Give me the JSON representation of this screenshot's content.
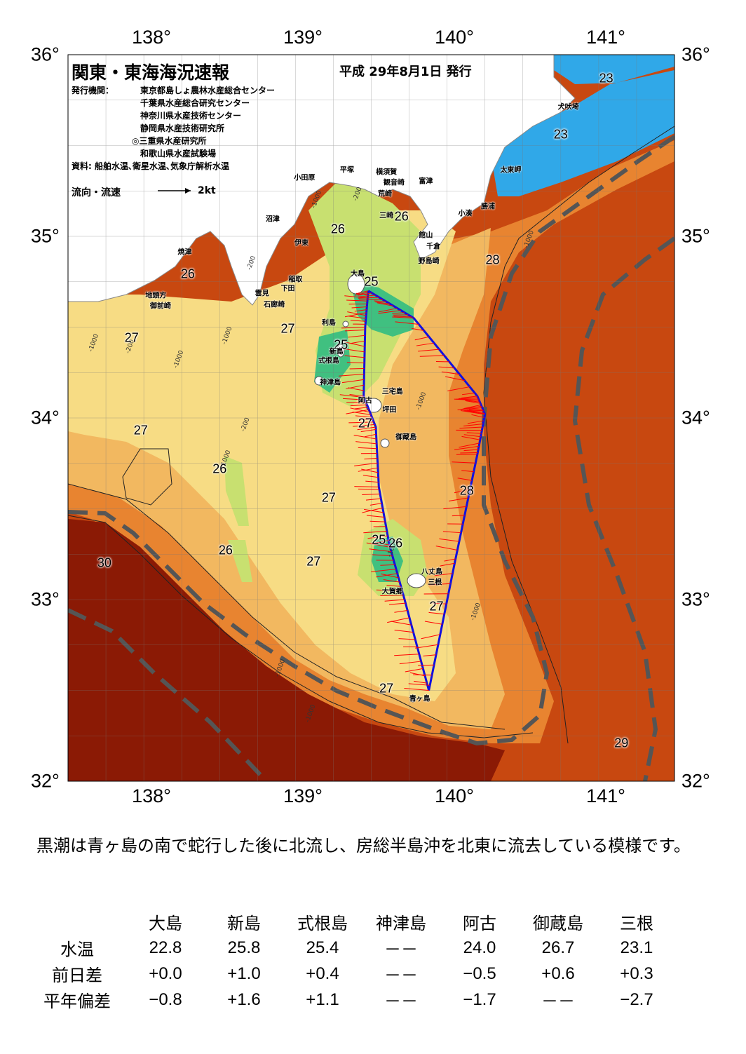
{
  "map": {
    "title": "関東・東海海況速報",
    "date": "平成 29年8月1日 発行",
    "issuer_label": "発行機関：",
    "organizations": [
      "東京都島しょ農林水産総合センター",
      "千葉県水産総合研究センター",
      "神奈川県水産技術センター",
      "静岡県水産技術研究所",
      "◎三重県水産研究所",
      "和歌山県水産試験場"
    ],
    "source": "資料: 船舶水温､衛星水温､気象庁解析水温",
    "legend_label": "流向・流速",
    "legend_unit": "2kt",
    "lon_labels": [
      "138°",
      "139°",
      "140°",
      "141°"
    ],
    "lat_labels": [
      "36°",
      "35°",
      "34°",
      "33°",
      "32°"
    ],
    "lon_range": [
      137.5,
      141.5
    ],
    "lat_range": [
      32,
      36
    ],
    "colors": {
      "kuroshio_axis": "#555555",
      "ship_track": "#1010e0",
      "current_vectors": "#ff0000",
      "temp_30": "#8b1a05",
      "temp_29": "#c84810",
      "temp_28": "#e88430",
      "temp_27": "#f2b860",
      "temp_26_27": "#f7dc84",
      "temp_26": "#c8e070",
      "temp_25": "#40c080",
      "temp_23": "#30a8e8",
      "land": "#ffffff"
    },
    "temperature_labels": [
      {
        "value": "23",
        "lon": 141.05,
        "lat": 35.87
      },
      {
        "value": "23",
        "lon": 140.75,
        "lat": 35.56
      },
      {
        "value": "26",
        "lon": 139.7,
        "lat": 35.11
      },
      {
        "value": "26",
        "lon": 139.28,
        "lat": 35.04
      },
      {
        "value": "28",
        "lon": 140.3,
        "lat": 34.87
      },
      {
        "value": "26",
        "lon": 138.29,
        "lat": 34.79
      },
      {
        "value": "25",
        "lon": 139.5,
        "lat": 34.75
      },
      {
        "value": "27",
        "lon": 138.95,
        "lat": 34.49
      },
      {
        "value": "27",
        "lon": 137.92,
        "lat": 34.44
      },
      {
        "value": "25",
        "lon": 139.3,
        "lat": 34.4
      },
      {
        "value": "27",
        "lon": 139.46,
        "lat": 33.97
      },
      {
        "value": "27",
        "lon": 137.98,
        "lat": 33.93
      },
      {
        "value": "26",
        "lon": 138.5,
        "lat": 33.72
      },
      {
        "value": "28",
        "lon": 140.13,
        "lat": 33.6
      },
      {
        "value": "27",
        "lon": 139.22,
        "lat": 33.56
      },
      {
        "value": "25",
        "lon": 139.55,
        "lat": 33.33
      },
      {
        "value": "26",
        "lon": 139.66,
        "lat": 33.31
      },
      {
        "value": "26",
        "lon": 138.54,
        "lat": 33.27
      },
      {
        "value": "30",
        "lon": 137.74,
        "lat": 33.2
      },
      {
        "value": "27",
        "lon": 139.12,
        "lat": 33.21
      },
      {
        "value": "27",
        "lon": 139.93,
        "lat": 32.96
      },
      {
        "value": "27",
        "lon": 139.6,
        "lat": 32.51
      },
      {
        "value": "29",
        "lon": 141.15,
        "lat": 32.21
      }
    ],
    "places": [
      {
        "name": "犬吠埼",
        "lon": 140.8,
        "lat": 35.72
      },
      {
        "name": "太東岬",
        "lon": 140.42,
        "lat": 35.37
      },
      {
        "name": "勝浦",
        "lon": 140.27,
        "lat": 35.17
      },
      {
        "name": "小湊",
        "lon": 140.12,
        "lat": 35.13
      },
      {
        "name": "富津",
        "lon": 139.86,
        "lat": 35.31
      },
      {
        "name": "横須賀",
        "lon": 139.6,
        "lat": 35.36
      },
      {
        "name": "観音崎",
        "lon": 139.65,
        "lat": 35.3
      },
      {
        "name": "荒崎",
        "lon": 139.59,
        "lat": 35.24
      },
      {
        "name": "三崎",
        "lon": 139.6,
        "lat": 35.12
      },
      {
        "name": "平塚",
        "lon": 139.34,
        "lat": 35.37
      },
      {
        "name": "小田原",
        "lon": 139.06,
        "lat": 35.33
      },
      {
        "name": "館山",
        "lon": 139.86,
        "lat": 35.01
      },
      {
        "name": "千倉",
        "lon": 139.91,
        "lat": 34.95
      },
      {
        "name": "野島崎",
        "lon": 139.88,
        "lat": 34.87
      },
      {
        "name": "沼津",
        "lon": 138.85,
        "lat": 35.1
      },
      {
        "name": "伊東",
        "lon": 139.04,
        "lat": 34.97
      },
      {
        "name": "焼津",
        "lon": 138.27,
        "lat": 34.92
      },
      {
        "name": "稲取",
        "lon": 139.0,
        "lat": 34.77
      },
      {
        "name": "下田",
        "lon": 138.95,
        "lat": 34.72
      },
      {
        "name": "雲見",
        "lon": 138.78,
        "lat": 34.69
      },
      {
        "name": "石廊崎",
        "lon": 138.86,
        "lat": 34.63
      },
      {
        "name": "地頭方",
        "lon": 138.08,
        "lat": 34.68
      },
      {
        "name": "御前崎",
        "lon": 138.11,
        "lat": 34.62
      },
      {
        "name": "大島",
        "lon": 139.41,
        "lat": 34.8
      },
      {
        "name": "利島",
        "lon": 139.22,
        "lat": 34.53
      },
      {
        "name": "新島",
        "lon": 139.27,
        "lat": 34.37
      },
      {
        "name": "式根島",
        "lon": 139.22,
        "lat": 34.32
      },
      {
        "name": "神津島",
        "lon": 139.23,
        "lat": 34.2
      },
      {
        "name": "阿古",
        "lon": 139.46,
        "lat": 34.1
      },
      {
        "name": "三宅島",
        "lon": 139.64,
        "lat": 34.15
      },
      {
        "name": "坪田",
        "lon": 139.62,
        "lat": 34.05
      },
      {
        "name": "御蔵島",
        "lon": 139.73,
        "lat": 33.9
      },
      {
        "name": "八丈島",
        "lon": 139.9,
        "lat": 33.16
      },
      {
        "name": "三根",
        "lon": 139.92,
        "lat": 33.1
      },
      {
        "name": "大賀郷",
        "lon": 139.64,
        "lat": 33.05
      },
      {
        "name": "青ヶ島",
        "lon": 139.82,
        "lat": 32.46
      }
    ],
    "contour_labels": [
      {
        "value": "-200",
        "lon": 139.42,
        "lat": 35.23
      },
      {
        "value": "-1000",
        "lon": 139.15,
        "lat": 35.2
      },
      {
        "value": "-1000",
        "lon": 140.55,
        "lat": 34.98
      },
      {
        "value": "-1000",
        "lon": 137.68,
        "lat": 34.41
      },
      {
        "value": "-200",
        "lon": 137.92,
        "lat": 34.39
      },
      {
        "value": "-1000",
        "lon": 138.24,
        "lat": 34.32
      },
      {
        "value": "-1000",
        "lon": 138.56,
        "lat": 34.45
      },
      {
        "value": "-200",
        "lon": 138.72,
        "lat": 34.85
      },
      {
        "value": "-200",
        "lon": 138.68,
        "lat": 33.96
      },
      {
        "value": "-1000",
        "lon": 138.55,
        "lat": 33.77
      },
      {
        "value": "-1000",
        "lon": 139.84,
        "lat": 34.09
      },
      {
        "value": "-1000",
        "lon": 139.65,
        "lat": 33.28
      },
      {
        "value": "-1000",
        "lon": 140.2,
        "lat": 32.93
      },
      {
        "value": "-1000",
        "lon": 138.91,
        "lat": 32.62
      },
      {
        "value": "-1000",
        "lon": 139.11,
        "lat": 32.37
      }
    ],
    "ship_track": [
      {
        "lon": 139.48,
        "lat": 34.7
      },
      {
        "lon": 139.78,
        "lat": 34.55
      },
      {
        "lon": 140.2,
        "lat": 34.12
      },
      {
        "lon": 140.25,
        "lat": 34.02
      },
      {
        "lon": 140.2,
        "lat": 33.8
      },
      {
        "lon": 140.05,
        "lat": 33.2
      },
      {
        "lon": 139.88,
        "lat": 32.5
      },
      {
        "lon": 139.72,
        "lat": 33.0
      },
      {
        "lon": 139.62,
        "lat": 33.3
      },
      {
        "lon": 139.55,
        "lat": 33.62
      },
      {
        "lon": 139.53,
        "lat": 33.95
      },
      {
        "lon": 139.45,
        "lat": 34.12
      },
      {
        "lon": 139.46,
        "lat": 34.5
      },
      {
        "lon": 139.48,
        "lat": 34.7
      }
    ]
  },
  "summary": "黒潮は青ヶ島の南で蛇行した後に北流し、房総半島沖を北東に流去している模様です。",
  "table": {
    "columns": [
      "大島",
      "新島",
      "式根島",
      "神津島",
      "阿古",
      "御蔵島",
      "三根"
    ],
    "rows": [
      {
        "label": "水温",
        "values": [
          "22.8",
          "25.8",
          "25.4",
          "－－",
          "24.0",
          "26.7",
          "23.1"
        ]
      },
      {
        "label": "前日差",
        "values": [
          "+0.0",
          "+1.0",
          "+0.4",
          "－－",
          "−0.5",
          "+0.6",
          "+0.3"
        ]
      },
      {
        "label": "平年偏差",
        "values": [
          "−0.8",
          "+1.6",
          "+1.1",
          "－－",
          "−1.7",
          "－－",
          "−2.7"
        ]
      }
    ]
  }
}
